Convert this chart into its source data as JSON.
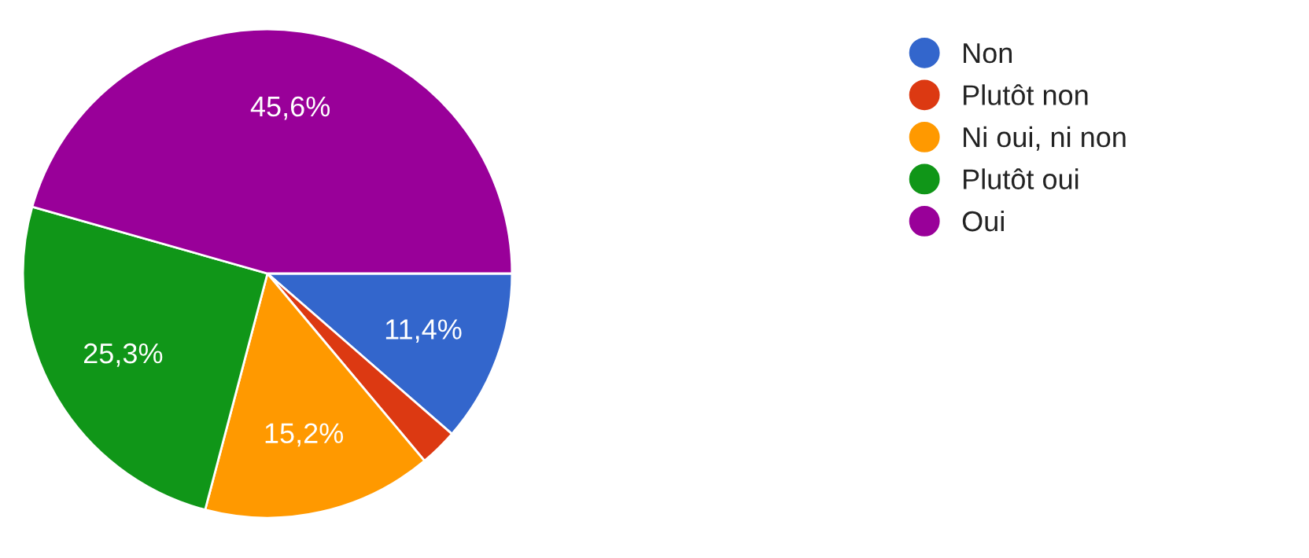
{
  "chart_data": {
    "type": "pie",
    "categories": [
      "Non",
      "Plutôt non",
      "Ni oui, ni non",
      "Plutôt oui",
      "Oui"
    ],
    "values": [
      11.4,
      2.5,
      15.2,
      25.3,
      45.6
    ],
    "colors": [
      "#3366cc",
      "#dc3912",
      "#ff9900",
      "#109618",
      "#990099"
    ],
    "value_labels": [
      "11,4%",
      null,
      "15,2%",
      "25,3%",
      "45,6%"
    ],
    "legend": "right"
  }
}
